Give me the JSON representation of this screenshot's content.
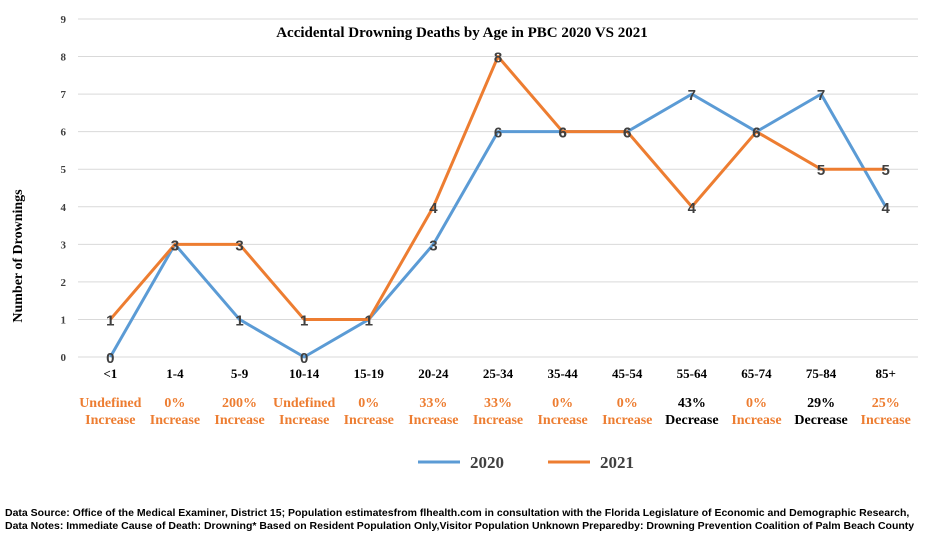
{
  "chart_data": {
    "type": "line",
    "title": "Accidental Drowning Deaths by Age in PBC  2020 VS 2021",
    "ylabel": "Number of Drownings",
    "xlabel": "",
    "ylim": [
      0,
      9
    ],
    "yticks": [
      0,
      1,
      2,
      3,
      4,
      5,
      6,
      7,
      8,
      9
    ],
    "grid": "horizontal",
    "legend_position": "bottom",
    "categories": [
      "<1",
      "1-4",
      "5-9",
      "10-14",
      "15-19",
      "20-24",
      "25-34",
      "35-44",
      "45-54",
      "55-64",
      "65-74",
      "75-84",
      "85+"
    ],
    "series": [
      {
        "name": "2020",
        "color": "#5b9bd5",
        "values": [
          0,
          3,
          1,
          0,
          1,
          3,
          6,
          6,
          6,
          7,
          6,
          7,
          4
        ]
      },
      {
        "name": "2021",
        "color": "#ed7d31",
        "values": [
          1,
          3,
          3,
          1,
          1,
          4,
          8,
          6,
          6,
          4,
          6,
          5,
          5
        ]
      }
    ],
    "change_annotations": [
      {
        "line1": "Undefined",
        "line2": "Increase",
        "color": "#ed7d31"
      },
      {
        "line1": "0%",
        "line2": "Increase",
        "color": "#ed7d31"
      },
      {
        "line1": "200%",
        "line2": "Increase",
        "color": "#ed7d31"
      },
      {
        "line1": "Undefined",
        "line2": "Increase",
        "color": "#ed7d31"
      },
      {
        "line1": "0%",
        "line2": "Increase",
        "color": "#ed7d31"
      },
      {
        "line1": "33%",
        "line2": "Increase",
        "color": "#ed7d31"
      },
      {
        "line1": "33%",
        "line2": "Increase",
        "color": "#ed7d31"
      },
      {
        "line1": "0%",
        "line2": "Increase",
        "color": "#ed7d31"
      },
      {
        "line1": "0%",
        "line2": "Increase",
        "color": "#ed7d31"
      },
      {
        "line1": "43%",
        "line2": "Decrease",
        "color": "#000000"
      },
      {
        "line1": "0%",
        "line2": "Increase",
        "color": "#ed7d31"
      },
      {
        "line1": "29%",
        "line2": "Decrease",
        "color": "#000000"
      },
      {
        "line1": "25%",
        "line2": "Increase",
        "color": "#ed7d31"
      }
    ]
  },
  "footer": {
    "source": "Data Source: Office of the Medical Examiner, District 15; Population estimatesfrom flhealth.com in consultation with the Florida Legislature of Economic and Demographic Research,",
    "notes": "Data Notes: Immediate Cause of Death: Drowning* Based on Resident Population Only,Visitor Population Unknown Preparedby: Drowning Prevention Coalition of Palm Beach County"
  }
}
